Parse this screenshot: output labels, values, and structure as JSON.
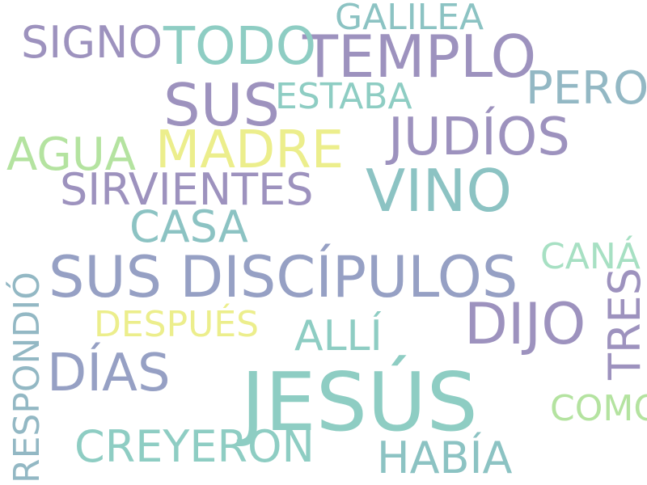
{
  "words": {
    "jesus": "JESÚS",
    "sus_discipulos": "SUS DISCÍPULOS",
    "templo": "TEMPLO",
    "sus": "SUS",
    "vino": "VINO",
    "dijo": "DIJO",
    "madre": "MADRE",
    "judios": "JUDÍOS",
    "todo": "TODO",
    "signo": "SIGNO",
    "galilea": "GALILEA",
    "estaba": "ESTABA",
    "pero": "PERO",
    "agua": "AGUA",
    "sirvientes": "SIRVIENTES",
    "casa": "CASA",
    "cana": "CANÁ",
    "tres": "TRES",
    "respondio": "RESPONDIÓ",
    "despues": "DESPUÉS",
    "alli": "ALLÍ",
    "dias": "DÍAS",
    "creyeron": "CREYERON",
    "habia": "HABÍA",
    "como": "COMO"
  },
  "palette": {
    "purple": "#9d92be",
    "slate": "#96a0c4",
    "teal": "#8ecdc3",
    "teal_blue": "#8cc3c3",
    "steel": "#93b8c4",
    "yellow": "#ecee8c",
    "green": "#b4e3a0",
    "mint": "#a7e0c3",
    "background": "#ffffff"
  }
}
